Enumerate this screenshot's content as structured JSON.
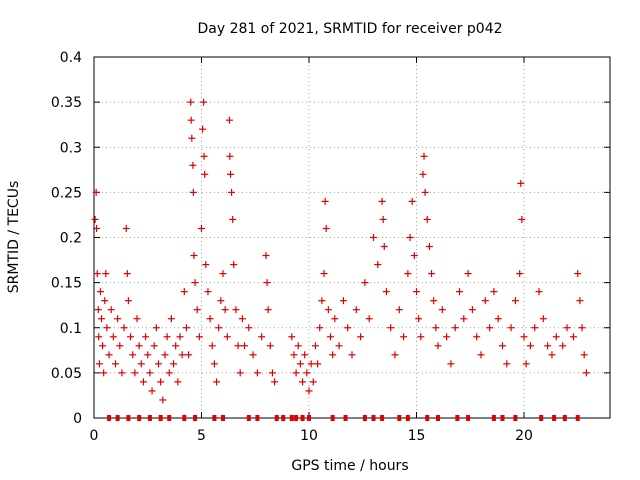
{
  "chart_data": {
    "type": "scatter",
    "title": "Day 281 of 2021, SRMTID for receiver p042",
    "xlabel": "GPS time / hours",
    "ylabel": "SRMTID / TECUs",
    "xlim": [
      0,
      24
    ],
    "ylim": [
      0,
      0.4
    ],
    "xticks": [
      0,
      5,
      10,
      15,
      20
    ],
    "xtick_labels": [
      "0",
      "5",
      "10",
      "15",
      "20"
    ],
    "yticks": [
      0,
      0.05,
      0.1,
      0.15,
      0.2,
      0.25,
      0.3,
      0.35,
      0.4
    ],
    "ytick_labels": [
      "0",
      "0.05",
      "0.1",
      "0.15",
      "0.2",
      "0.25",
      "0.3",
      "0.35",
      "0.4"
    ],
    "grid": true,
    "marker": "plus",
    "color": "#e00000",
    "points": [
      [
        0.05,
        0.22
      ],
      [
        0.1,
        0.25
      ],
      [
        0.12,
        0.21
      ],
      [
        0.15,
        0.16
      ],
      [
        0.2,
        0.12
      ],
      [
        0.22,
        0.09
      ],
      [
        0.25,
        0.06
      ],
      [
        0.3,
        0.14
      ],
      [
        0.35,
        0.11
      ],
      [
        0.4,
        0.08
      ],
      [
        0.45,
        0.05
      ],
      [
        0.5,
        0.13
      ],
      [
        0.55,
        0.16
      ],
      [
        0.6,
        0.1
      ],
      [
        0.7,
        0.07
      ],
      [
        0.8,
        0.12
      ],
      [
        0.9,
        0.09
      ],
      [
        1.0,
        0.06
      ],
      [
        1.1,
        0.11
      ],
      [
        1.2,
        0.08
      ],
      [
        1.3,
        0.05
      ],
      [
        1.4,
        0.1
      ],
      [
        1.5,
        0.21
      ],
      [
        1.55,
        0.16
      ],
      [
        1.6,
        0.13
      ],
      [
        1.7,
        0.09
      ],
      [
        1.8,
        0.07
      ],
      [
        1.9,
        0.05
      ],
      [
        2.0,
        0.11
      ],
      [
        2.1,
        0.08
      ],
      [
        2.2,
        0.06
      ],
      [
        2.3,
        0.04
      ],
      [
        2.4,
        0.09
      ],
      [
        2.5,
        0.07
      ],
      [
        2.6,
        0.05
      ],
      [
        2.7,
        0.03
      ],
      [
        2.8,
        0.08
      ],
      [
        2.9,
        0.1
      ],
      [
        3.0,
        0.06
      ],
      [
        3.1,
        0.04
      ],
      [
        3.2,
        0.02
      ],
      [
        3.3,
        0.07
      ],
      [
        3.4,
        0.09
      ],
      [
        3.5,
        0.05
      ],
      [
        3.6,
        0.11
      ],
      [
        3.7,
        0.06
      ],
      [
        3.8,
        0.08
      ],
      [
        3.9,
        0.04
      ],
      [
        4.0,
        0.09
      ],
      [
        4.1,
        0.07
      ],
      [
        4.2,
        0.14
      ],
      [
        4.3,
        0.1
      ],
      [
        4.4,
        0.07
      ],
      [
        4.5,
        0.35
      ],
      [
        4.52,
        0.33
      ],
      [
        4.55,
        0.31
      ],
      [
        4.6,
        0.28
      ],
      [
        4.62,
        0.25
      ],
      [
        4.65,
        0.18
      ],
      [
        4.7,
        0.15
      ],
      [
        4.8,
        0.12
      ],
      [
        4.9,
        0.09
      ],
      [
        5.0,
        0.21
      ],
      [
        5.05,
        0.32
      ],
      [
        5.1,
        0.35
      ],
      [
        5.12,
        0.29
      ],
      [
        5.15,
        0.27
      ],
      [
        5.2,
        0.17
      ],
      [
        5.3,
        0.14
      ],
      [
        5.4,
        0.11
      ],
      [
        5.5,
        0.08
      ],
      [
        5.6,
        0.06
      ],
      [
        5.7,
        0.04
      ],
      [
        5.8,
        0.1
      ],
      [
        5.9,
        0.13
      ],
      [
        6.0,
        0.16
      ],
      [
        6.1,
        0.12
      ],
      [
        6.2,
        0.09
      ],
      [
        6.3,
        0.33
      ],
      [
        6.32,
        0.29
      ],
      [
        6.35,
        0.27
      ],
      [
        6.4,
        0.25
      ],
      [
        6.45,
        0.22
      ],
      [
        6.5,
        0.17
      ],
      [
        6.6,
        0.12
      ],
      [
        6.7,
        0.08
      ],
      [
        6.8,
        0.05
      ],
      [
        6.9,
        0.11
      ],
      [
        7.0,
        0.08
      ],
      [
        7.2,
        0.1
      ],
      [
        7.4,
        0.07
      ],
      [
        7.6,
        0.05
      ],
      [
        7.8,
        0.09
      ],
      [
        8.0,
        0.18
      ],
      [
        8.05,
        0.15
      ],
      [
        8.1,
        0.12
      ],
      [
        8.2,
        0.08
      ],
      [
        8.3,
        0.05
      ],
      [
        8.4,
        0.04
      ],
      [
        9.2,
        0.09
      ],
      [
        9.3,
        0.07
      ],
      [
        9.4,
        0.05
      ],
      [
        9.5,
        0.08
      ],
      [
        9.6,
        0.06
      ],
      [
        9.7,
        0.04
      ],
      [
        9.8,
        0.07
      ],
      [
        9.9,
        0.05
      ],
      [
        10.0,
        0.03
      ],
      [
        10.1,
        0.06
      ],
      [
        10.2,
        0.04
      ],
      [
        10.3,
        0.08
      ],
      [
        10.4,
        0.06
      ],
      [
        10.5,
        0.1
      ],
      [
        10.6,
        0.13
      ],
      [
        10.7,
        0.16
      ],
      [
        10.75,
        0.24
      ],
      [
        10.8,
        0.21
      ],
      [
        10.9,
        0.12
      ],
      [
        11.0,
        0.09
      ],
      [
        11.1,
        0.07
      ],
      [
        11.2,
        0.11
      ],
      [
        11.4,
        0.08
      ],
      [
        11.6,
        0.13
      ],
      [
        11.8,
        0.1
      ],
      [
        12.0,
        0.07
      ],
      [
        12.2,
        0.12
      ],
      [
        12.4,
        0.09
      ],
      [
        12.6,
        0.15
      ],
      [
        12.8,
        0.11
      ],
      [
        13.0,
        0.2
      ],
      [
        13.2,
        0.17
      ],
      [
        13.4,
        0.24
      ],
      [
        13.45,
        0.22
      ],
      [
        13.5,
        0.19
      ],
      [
        13.6,
        0.14
      ],
      [
        13.8,
        0.1
      ],
      [
        14.0,
        0.07
      ],
      [
        14.2,
        0.12
      ],
      [
        14.4,
        0.09
      ],
      [
        14.6,
        0.16
      ],
      [
        14.7,
        0.2
      ],
      [
        14.8,
        0.24
      ],
      [
        14.9,
        0.18
      ],
      [
        15.0,
        0.14
      ],
      [
        15.1,
        0.11
      ],
      [
        15.2,
        0.09
      ],
      [
        15.3,
        0.27
      ],
      [
        15.35,
        0.29
      ],
      [
        15.4,
        0.25
      ],
      [
        15.5,
        0.22
      ],
      [
        15.6,
        0.19
      ],
      [
        15.7,
        0.16
      ],
      [
        15.8,
        0.13
      ],
      [
        15.9,
        0.1
      ],
      [
        16.0,
        0.08
      ],
      [
        16.2,
        0.12
      ],
      [
        16.4,
        0.09
      ],
      [
        16.6,
        0.06
      ],
      [
        16.8,
        0.1
      ],
      [
        17.0,
        0.14
      ],
      [
        17.2,
        0.11
      ],
      [
        17.4,
        0.16
      ],
      [
        17.6,
        0.12
      ],
      [
        17.8,
        0.09
      ],
      [
        18.0,
        0.07
      ],
      [
        18.2,
        0.13
      ],
      [
        18.4,
        0.1
      ],
      [
        18.6,
        0.14
      ],
      [
        18.8,
        0.11
      ],
      [
        19.0,
        0.08
      ],
      [
        19.2,
        0.06
      ],
      [
        19.4,
        0.1
      ],
      [
        19.6,
        0.13
      ],
      [
        19.8,
        0.16
      ],
      [
        19.85,
        0.26
      ],
      [
        19.9,
        0.22
      ],
      [
        20.0,
        0.09
      ],
      [
        20.1,
        0.06
      ],
      [
        20.3,
        0.08
      ],
      [
        20.5,
        0.1
      ],
      [
        20.7,
        0.14
      ],
      [
        20.9,
        0.11
      ],
      [
        21.1,
        0.08
      ],
      [
        21.3,
        0.07
      ],
      [
        21.5,
        0.09
      ],
      [
        21.8,
        0.08
      ],
      [
        22.0,
        0.1
      ],
      [
        22.3,
        0.09
      ],
      [
        22.5,
        0.16
      ],
      [
        22.6,
        0.13
      ],
      [
        22.7,
        0.1
      ],
      [
        22.8,
        0.07
      ],
      [
        22.9,
        0.05
      ]
    ],
    "gap_markers_x": [
      0.7,
      1.1,
      1.6,
      2.1,
      2.6,
      3.1,
      3.5,
      4.2,
      4.7,
      5.6,
      6.0,
      7.2,
      7.6,
      8.5,
      8.8,
      9.2,
      9.4,
      9.7,
      10.0,
      11.1,
      11.7,
      12.6,
      13.0,
      13.4,
      14.2,
      14.6,
      15.5,
      16.0,
      16.9,
      17.4,
      18.6,
      19.0,
      19.6,
      20.8,
      21.4,
      21.9,
      22.5
    ]
  }
}
